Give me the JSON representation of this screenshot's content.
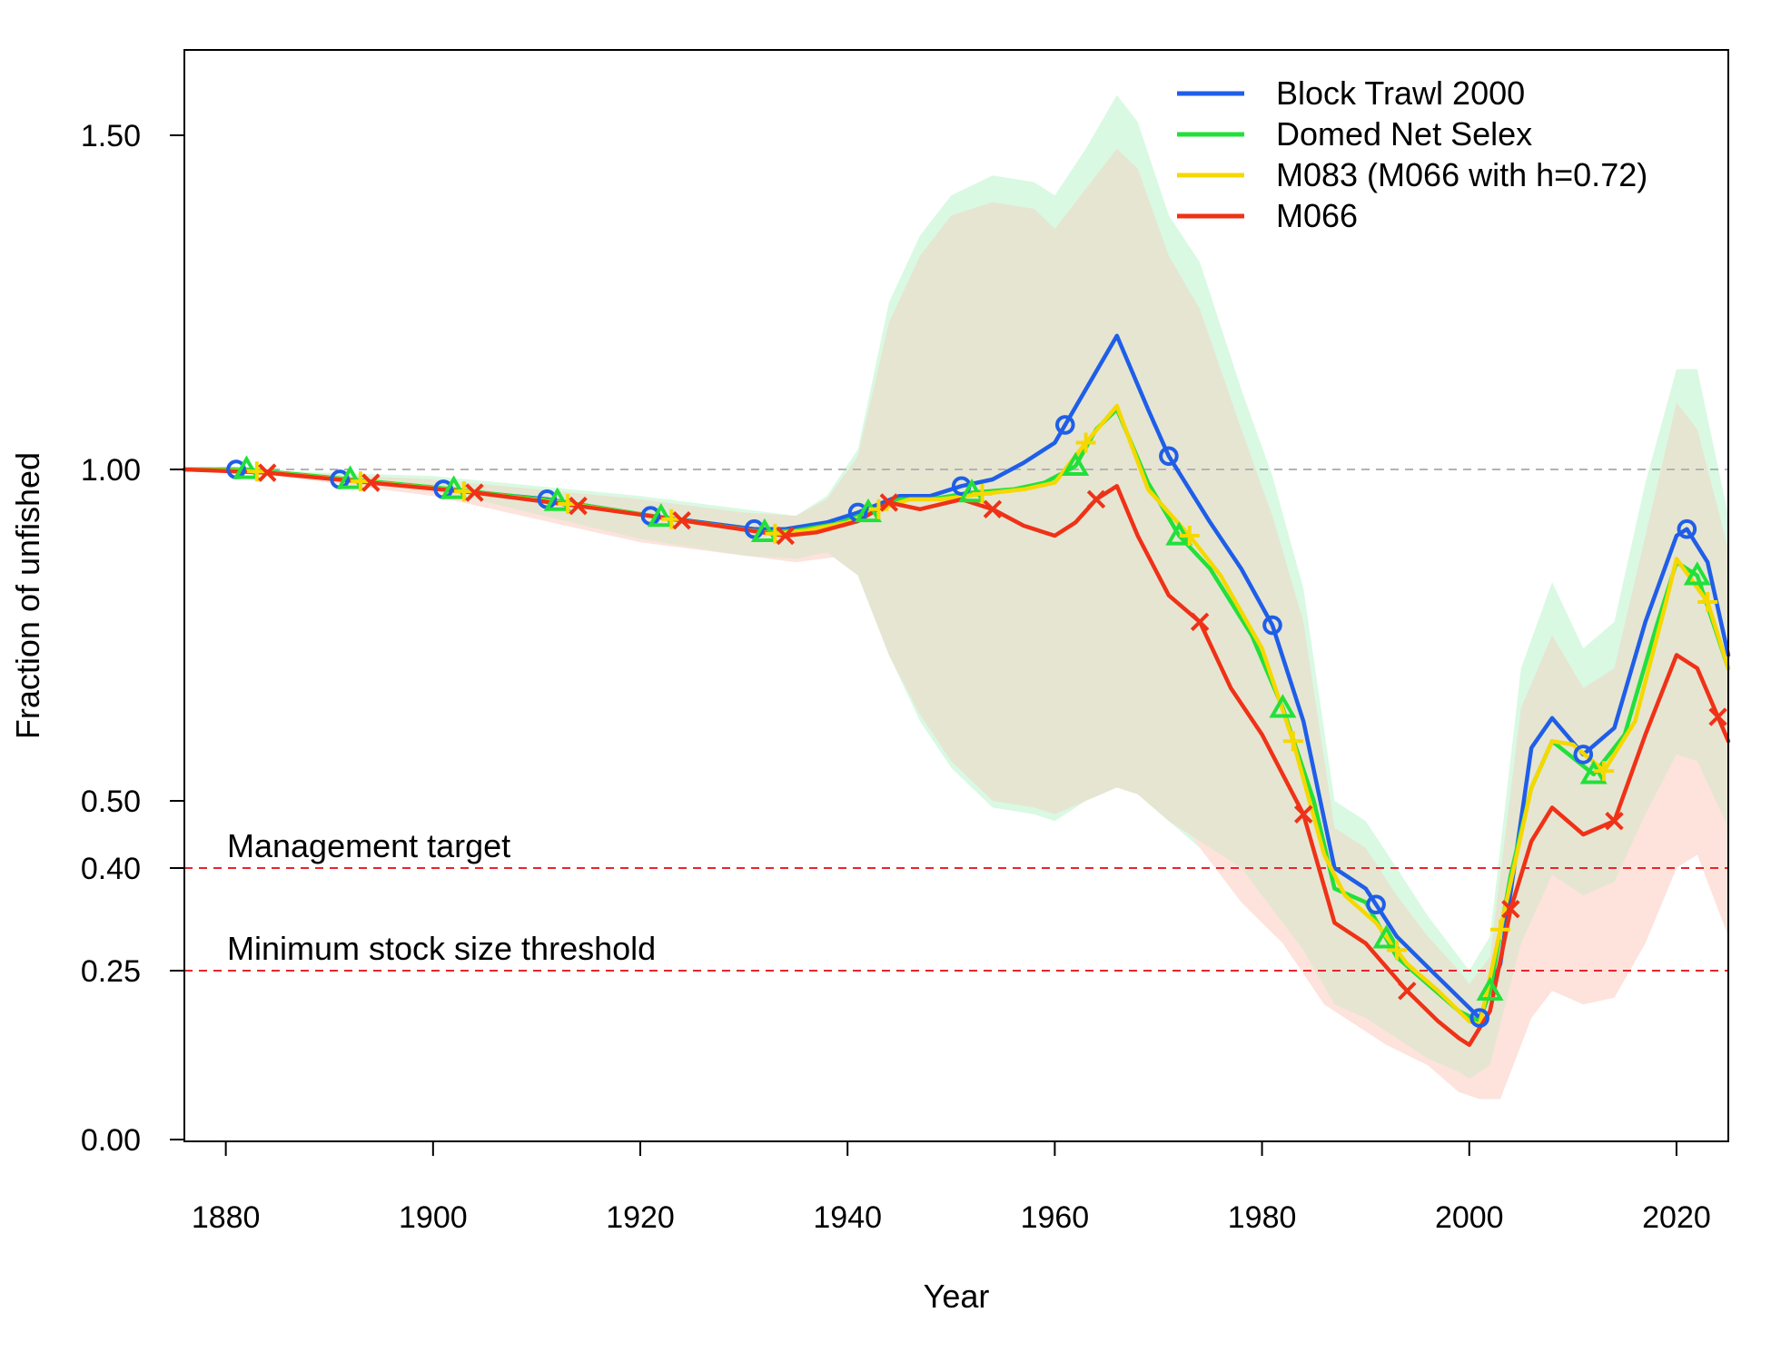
{
  "chart_data": {
    "type": "line",
    "xlabel": "Year",
    "ylabel": "Fraction of unfished",
    "xlim": [
      1876,
      2025
    ],
    "ylim": [
      0,
      1.5
    ],
    "x_ticks": [
      1880,
      1900,
      1920,
      1940,
      1960,
      1980,
      2000,
      2020
    ],
    "y_ticks": [
      {
        "value": 0.0,
        "label": "0.00"
      },
      {
        "value": 0.25,
        "label": "0.25"
      },
      {
        "value": 0.4,
        "label": "0.40"
      },
      {
        "value": 0.5,
        "label": "0.50"
      },
      {
        "value": 1.0,
        "label": "1.00"
      },
      {
        "value": 1.5,
        "label": "1.50"
      }
    ],
    "grid": false,
    "legend_position": "top-right",
    "reference_lines": [
      {
        "name": "unfished",
        "y": 1.0,
        "color": "#b3b3b3",
        "style": "dashed"
      },
      {
        "name": "target",
        "y": 0.4,
        "color": "#e8252b",
        "style": "dashed",
        "label": "Management target"
      },
      {
        "name": "msst",
        "y": 0.25,
        "color": "#e8252b",
        "style": "dashed",
        "label": "Minimum stock size threshold"
      }
    ],
    "series": [
      {
        "name": "Block Trawl 2000",
        "color": "#1f5ee8",
        "marker": "circle",
        "marker_years": [
          1881,
          1891,
          1901,
          1911,
          1921,
          1931,
          1941,
          1951,
          1961,
          1971,
          1981,
          1991,
          2001,
          2011,
          2021
        ],
        "x": [
          1876,
          1881,
          1891,
          1901,
          1911,
          1921,
          1931,
          1934,
          1938,
          1941,
          1945,
          1948,
          1951,
          1954,
          1957,
          1960,
          1963,
          1966,
          1969,
          1971,
          1975,
          1978,
          1981,
          1984,
          1987,
          1990,
          1993,
          1996,
          1999,
          2001,
          2003,
          2006,
          2008,
          2011,
          2014,
          2017,
          2020,
          2021,
          2023,
          2025
        ],
        "y": [
          1.0,
          1.0,
          0.985,
          0.97,
          0.955,
          0.93,
          0.91,
          0.91,
          0.92,
          0.935,
          0.96,
          0.96,
          0.975,
          0.985,
          1.01,
          1.04,
          1.12,
          1.2,
          1.09,
          1.02,
          0.92,
          0.85,
          0.765,
          0.62,
          0.4,
          0.37,
          0.3,
          0.255,
          0.21,
          0.18,
          0.26,
          0.58,
          0.625,
          0.57,
          0.61,
          0.77,
          0.9,
          0.91,
          0.86,
          0.72
        ]
      },
      {
        "name": "Domed Net Selex",
        "color": "#22e03a",
        "marker": "triangle",
        "marker_years": [
          1882,
          1892,
          1902,
          1912,
          1922,
          1932,
          1942,
          1952,
          1962,
          1972,
          1982,
          1992,
          2002,
          2012,
          2022
        ],
        "x": [
          1876,
          1882,
          1892,
          1902,
          1912,
          1922,
          1932,
          1935,
          1939,
          1942,
          1945,
          1948,
          1952,
          1956,
          1959,
          1962,
          1964,
          1966,
          1969,
          1972,
          1975,
          1979,
          1982,
          1985,
          1987,
          1990,
          1993,
          1996,
          1999,
          2001,
          2002,
          2004,
          2006,
          2008,
          2012,
          2015,
          2018,
          2020,
          2022,
          2025
        ],
        "y": [
          1.0,
          1.0,
          0.985,
          0.97,
          0.952,
          0.928,
          0.905,
          0.908,
          0.918,
          0.935,
          0.955,
          0.955,
          0.965,
          0.97,
          0.98,
          1.005,
          1.06,
          1.09,
          0.98,
          0.9,
          0.85,
          0.75,
          0.64,
          0.5,
          0.37,
          0.35,
          0.27,
          0.23,
          0.19,
          0.175,
          0.22,
          0.39,
          0.52,
          0.59,
          0.54,
          0.6,
          0.76,
          0.86,
          0.84,
          0.7
        ]
      },
      {
        "name": "M083 (M066 with h=0.72)",
        "color": "#f5d800",
        "marker": "plus",
        "marker_years": [
          1883,
          1893,
          1903,
          1913,
          1923,
          1933,
          1943,
          1953,
          1963,
          1973,
          1983,
          1993,
          2003,
          2013,
          2023
        ],
        "x": [
          1876,
          1883,
          1893,
          1903,
          1913,
          1923,
          1933,
          1936,
          1940,
          1943,
          1946,
          1949,
          1953,
          1957,
          1960,
          1963,
          1966,
          1969,
          1973,
          1976,
          1980,
          1983,
          1986,
          1988,
          1991,
          1994,
          1997,
          2000,
          2001,
          2003,
          2006,
          2008,
          2010,
          2013,
          2016,
          2019,
          2020,
          2023,
          2025
        ],
        "y": [
          1.0,
          0.997,
          0.982,
          0.967,
          0.948,
          0.925,
          0.903,
          0.908,
          0.92,
          0.94,
          0.955,
          0.955,
          0.963,
          0.97,
          0.98,
          1.04,
          1.095,
          0.97,
          0.9,
          0.84,
          0.73,
          0.59,
          0.42,
          0.36,
          0.32,
          0.26,
          0.22,
          0.175,
          0.17,
          0.31,
          0.52,
          0.59,
          0.585,
          0.545,
          0.62,
          0.8,
          0.865,
          0.8,
          0.7
        ]
      },
      {
        "name": "M066",
        "color": "#ef3217",
        "marker": "cross",
        "marker_years": [
          1884,
          1894,
          1904,
          1914,
          1924,
          1934,
          1944,
          1954,
          1964,
          1974,
          1984,
          1994,
          2004,
          2014,
          2024
        ],
        "x": [
          1876,
          1884,
          1894,
          1904,
          1914,
          1924,
          1934,
          1937,
          1941,
          1944,
          1947,
          1951,
          1954,
          1957,
          1960,
          1962,
          1964,
          1966,
          1968,
          1971,
          1974,
          1977,
          1980,
          1984,
          1987,
          1990,
          1994,
          1997,
          1999,
          2000,
          2002,
          2004,
          2006,
          2008,
          2011,
          2014,
          2017,
          2020,
          2022,
          2025
        ],
        "y": [
          1.0,
          0.995,
          0.98,
          0.965,
          0.945,
          0.923,
          0.9,
          0.905,
          0.922,
          0.95,
          0.94,
          0.955,
          0.94,
          0.915,
          0.9,
          0.92,
          0.955,
          0.975,
          0.9,
          0.81,
          0.77,
          0.67,
          0.6,
          0.48,
          0.32,
          0.29,
          0.22,
          0.175,
          0.15,
          0.14,
          0.19,
          0.34,
          0.44,
          0.49,
          0.45,
          0.47,
          0.6,
          0.72,
          0.7,
          0.59
        ]
      }
    ],
    "uncertainty_bands": [
      {
        "name": "Block Trawl 2000 interval",
        "color": "#d9f9e2",
        "x": [
          1876,
          1880,
          1900,
          1920,
          1930,
          1935,
          1938,
          1941,
          1944,
          1947,
          1950,
          1954,
          1958,
          1960,
          1963,
          1966,
          1968,
          1971,
          1974,
          1978,
          1981,
          1984,
          1987,
          1990,
          1993,
          1996,
          1999,
          2000,
          2002,
          2005,
          2008,
          2011,
          2014,
          2017,
          2020,
          2022,
          2025
        ],
        "upper": [
          1.0,
          1.0,
          0.99,
          0.96,
          0.94,
          0.93,
          0.96,
          1.03,
          1.25,
          1.35,
          1.41,
          1.44,
          1.43,
          1.41,
          1.48,
          1.56,
          1.52,
          1.38,
          1.31,
          1.12,
          0.99,
          0.82,
          0.5,
          0.47,
          0.4,
          0.33,
          0.27,
          0.25,
          0.3,
          0.7,
          0.83,
          0.73,
          0.77,
          0.98,
          1.15,
          1.15,
          0.93
        ],
        "lower": [
          1.0,
          1.0,
          0.97,
          0.9,
          0.87,
          0.87,
          0.88,
          0.84,
          0.72,
          0.62,
          0.55,
          0.49,
          0.48,
          0.47,
          0.5,
          0.53,
          0.51,
          0.47,
          0.43,
          0.39,
          0.33,
          0.27,
          0.19,
          0.17,
          0.14,
          0.12,
          0.1,
          0.09,
          0.1,
          0.28,
          0.38,
          0.35,
          0.37,
          0.47,
          0.56,
          0.55,
          0.45
        ]
      },
      {
        "name": "M066 interval",
        "color": "#fde3dc",
        "x": [
          1876,
          1880,
          1900,
          1920,
          1930,
          1935,
          1940,
          1944,
          1950,
          1954,
          1958,
          1962,
          1964,
          1966,
          1968,
          1971,
          1974,
          1978,
          1982,
          1986,
          1989,
          1992,
          1996,
          1999,
          2001,
          2003,
          2006,
          2008,
          2011,
          2014,
          2017,
          2020,
          2022,
          2025
        ],
        "upper": [
          1.0,
          1.0,
          0.985,
          0.955,
          0.935,
          0.93,
          0.95,
          0.99,
          0.98,
          0.95,
          0.93,
          0.95,
          1.0,
          1.02,
          0.95,
          0.85,
          0.81,
          0.72,
          0.64,
          0.45,
          0.39,
          0.33,
          0.27,
          0.22,
          0.2,
          0.24,
          0.4,
          0.46,
          0.43,
          0.44,
          0.57,
          0.73,
          0.74,
          0.7
        ],
        "lower": [
          1.0,
          1.0,
          0.96,
          0.89,
          0.87,
          0.86,
          0.87,
          0.88,
          0.91,
          0.89,
          0.85,
          0.8,
          0.55,
          0.6,
          0.57,
          0.5,
          0.43,
          0.35,
          0.29,
          0.2,
          0.17,
          0.14,
          0.11,
          0.07,
          0.06,
          0.06,
          0.18,
          0.22,
          0.2,
          0.21,
          0.29,
          0.4,
          0.42,
          0.3
        ]
      },
      {
        "name": "Overlap interval",
        "color": "#e6e5d2",
        "x": [
          1876,
          1880,
          1900,
          1920,
          1930,
          1935,
          1938,
          1941,
          1944,
          1947,
          1950,
          1954,
          1958,
          1960,
          1963,
          1966,
          1968,
          1971,
          1974,
          1978,
          1981,
          1984,
          1987,
          1990,
          1993,
          1996,
          1999,
          2000,
          2002,
          2005,
          2008,
          2011,
          2014,
          2017,
          2020,
          2022,
          2025
        ],
        "upper": [
          1.0,
          1.0,
          0.985,
          0.955,
          0.935,
          0.93,
          0.955,
          1.02,
          1.22,
          1.32,
          1.38,
          1.4,
          1.39,
          1.36,
          1.42,
          1.48,
          1.45,
          1.32,
          1.24,
          1.06,
          0.93,
          0.77,
          0.46,
          0.43,
          0.36,
          0.3,
          0.25,
          0.23,
          0.27,
          0.64,
          0.75,
          0.67,
          0.7,
          0.9,
          1.1,
          1.06,
          0.88
        ],
        "lower": [
          1.0,
          1.0,
          0.97,
          0.895,
          0.87,
          0.865,
          0.875,
          0.84,
          0.72,
          0.63,
          0.56,
          0.5,
          0.49,
          0.48,
          0.5,
          0.52,
          0.51,
          0.47,
          0.44,
          0.4,
          0.34,
          0.28,
          0.2,
          0.18,
          0.15,
          0.12,
          0.1,
          0.09,
          0.11,
          0.29,
          0.39,
          0.36,
          0.38,
          0.48,
          0.57,
          0.56,
          0.46
        ]
      }
    ]
  }
}
